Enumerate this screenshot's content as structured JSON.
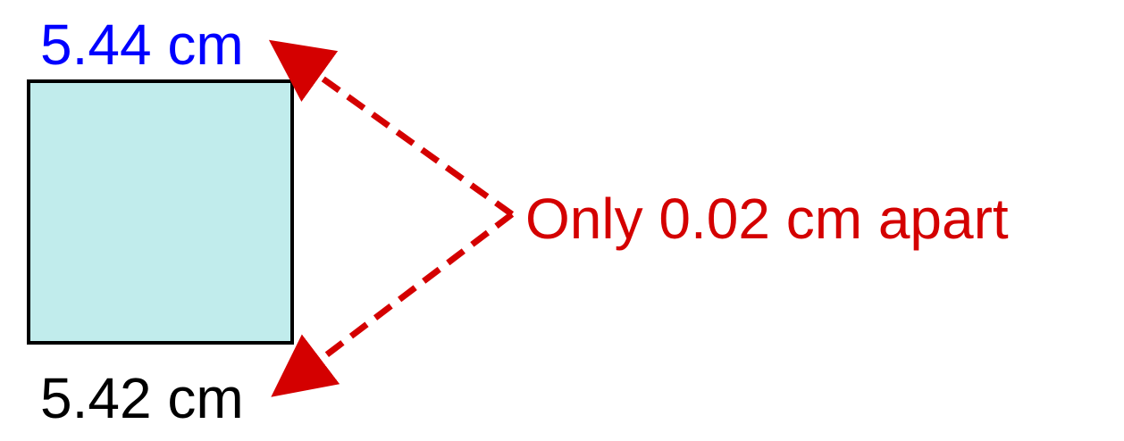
{
  "measurements": {
    "top": {
      "text": "5.44 cm",
      "color": "#0000FF"
    },
    "bottom": {
      "text": "5.42 cm",
      "color": "#000000"
    }
  },
  "annotation": {
    "text": "Only 0.02 cm apart",
    "color": "#D40000"
  },
  "square": {
    "fill": "#C1ECEC",
    "stroke": "#000000"
  },
  "arrows": {
    "color": "#D40000",
    "style": "dashed"
  }
}
